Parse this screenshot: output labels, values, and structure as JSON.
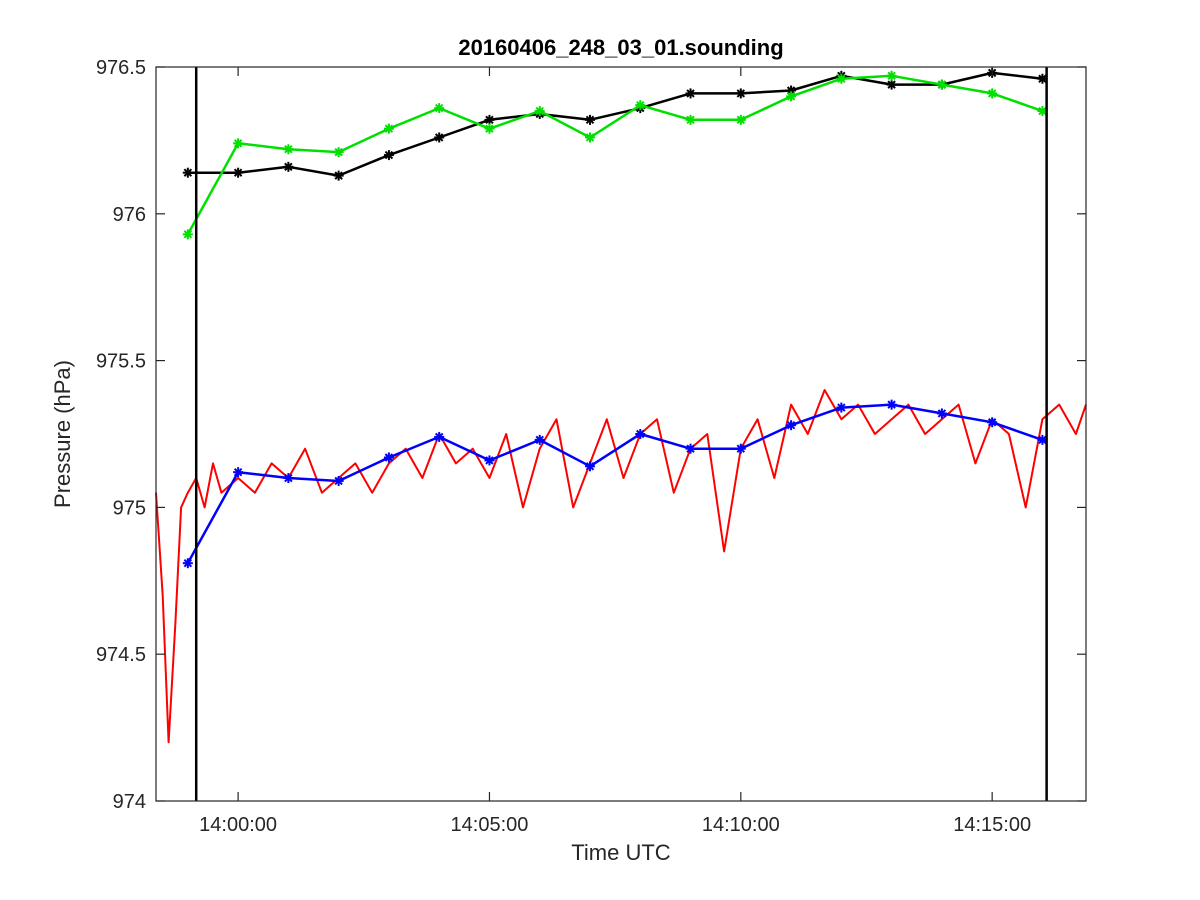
{
  "chart_data": {
    "type": "line",
    "title": "20160406_248_03_01.sounding",
    "xlabel": "Time UTC",
    "ylabel": "Pressure (hPa)",
    "xlim": [
      "13:58:22",
      "14:16:52"
    ],
    "ylim": [
      974,
      976.5
    ],
    "xticks": [
      "14:00:00",
      "14:05:00",
      "14:10:00",
      "14:15:00"
    ],
    "yticks": [
      "974",
      "974.5",
      "975",
      "975.5",
      "976",
      "976.5"
    ],
    "grid": false,
    "legend": "none",
    "vertical_lines": [
      "13:59:10",
      "14:16:05"
    ],
    "series": [
      {
        "color": "#000000",
        "marker": "asterisk",
        "x": [
          "13:59:00",
          "14:00:00",
          "14:01:00",
          "14:02:00",
          "14:03:00",
          "14:04:00",
          "14:05:00",
          "14:06:00",
          "14:07:00",
          "14:08:00",
          "14:09:00",
          "14:10:00",
          "14:11:00",
          "14:12:00",
          "14:13:00",
          "14:14:00",
          "14:15:00",
          "14:16:00"
        ],
        "values": [
          976.14,
          976.14,
          976.16,
          976.13,
          976.2,
          976.26,
          976.32,
          976.34,
          976.32,
          976.36,
          976.41,
          976.41,
          976.42,
          976.47,
          976.44,
          976.44,
          976.48,
          976.46
        ]
      },
      {
        "color": "#00e000",
        "marker": "asterisk",
        "x": [
          "13:59:00",
          "14:00:00",
          "14:01:00",
          "14:02:00",
          "14:03:00",
          "14:04:00",
          "14:05:00",
          "14:06:00",
          "14:07:00",
          "14:08:00",
          "14:09:00",
          "14:10:00",
          "14:11:00",
          "14:12:00",
          "14:13:00",
          "14:14:00",
          "14:15:00",
          "14:16:00"
        ],
        "values": [
          975.93,
          976.24,
          976.22,
          976.21,
          976.29,
          976.36,
          976.29,
          976.35,
          976.26,
          976.37,
          976.32,
          976.32,
          976.4,
          976.46,
          976.47,
          976.44,
          976.41,
          976.35
        ]
      },
      {
        "color": "#0000ff",
        "marker": "asterisk",
        "x": [
          "13:59:00",
          "14:00:00",
          "14:01:00",
          "14:02:00",
          "14:03:00",
          "14:04:00",
          "14:05:00",
          "14:06:00",
          "14:07:00",
          "14:08:00",
          "14:09:00",
          "14:10:00",
          "14:11:00",
          "14:12:00",
          "14:13:00",
          "14:14:00",
          "14:15:00",
          "14:16:00"
        ],
        "values": [
          974.81,
          975.12,
          975.1,
          975.09,
          975.17,
          975.24,
          975.16,
          975.23,
          975.14,
          975.25,
          975.2,
          975.2,
          975.28,
          975.34,
          975.35,
          975.32,
          975.29,
          975.23
        ]
      },
      {
        "color": "#ff0000",
        "marker": "none",
        "x": [
          "13:58:22",
          "13:58:30",
          "13:58:37",
          "13:58:45",
          "13:58:52",
          "13:59:00",
          "13:59:10",
          "13:59:20",
          "13:59:30",
          "13:59:40",
          "14:00:00",
          "14:00:20",
          "14:00:40",
          "14:01:00",
          "14:01:20",
          "14:01:40",
          "14:02:00",
          "14:02:20",
          "14:02:40",
          "14:03:00",
          "14:03:20",
          "14:03:40",
          "14:04:00",
          "14:04:20",
          "14:04:40",
          "14:05:00",
          "14:05:20",
          "14:05:40",
          "14:06:00",
          "14:06:20",
          "14:06:40",
          "14:07:00",
          "14:07:20",
          "14:07:40",
          "14:08:00",
          "14:08:20",
          "14:08:40",
          "14:09:00",
          "14:09:20",
          "14:09:40",
          "14:10:00",
          "14:10:20",
          "14:10:40",
          "14:11:00",
          "14:11:20",
          "14:11:40",
          "14:12:00",
          "14:12:20",
          "14:12:40",
          "14:13:00",
          "14:13:20",
          "14:13:40",
          "14:14:00",
          "14:14:20",
          "14:14:40",
          "14:15:00",
          "14:15:20",
          "14:15:40",
          "14:16:00",
          "14:16:20",
          "14:16:40",
          "14:16:52"
        ],
        "values": [
          975.05,
          974.7,
          974.2,
          974.6,
          975.0,
          975.05,
          975.1,
          975.0,
          975.15,
          975.05,
          975.1,
          975.05,
          975.15,
          975.1,
          975.2,
          975.05,
          975.1,
          975.15,
          975.05,
          975.15,
          975.2,
          975.1,
          975.25,
          975.15,
          975.2,
          975.1,
          975.25,
          975.0,
          975.2,
          975.3,
          975.0,
          975.15,
          975.3,
          975.1,
          975.25,
          975.3,
          975.05,
          975.2,
          975.25,
          974.85,
          975.2,
          975.3,
          975.1,
          975.35,
          975.25,
          975.4,
          975.3,
          975.35,
          975.25,
          975.3,
          975.35,
          975.25,
          975.3,
          975.35,
          975.15,
          975.3,
          975.25,
          975.0,
          975.3,
          975.35,
          975.25,
          975.35
        ]
      }
    ]
  }
}
